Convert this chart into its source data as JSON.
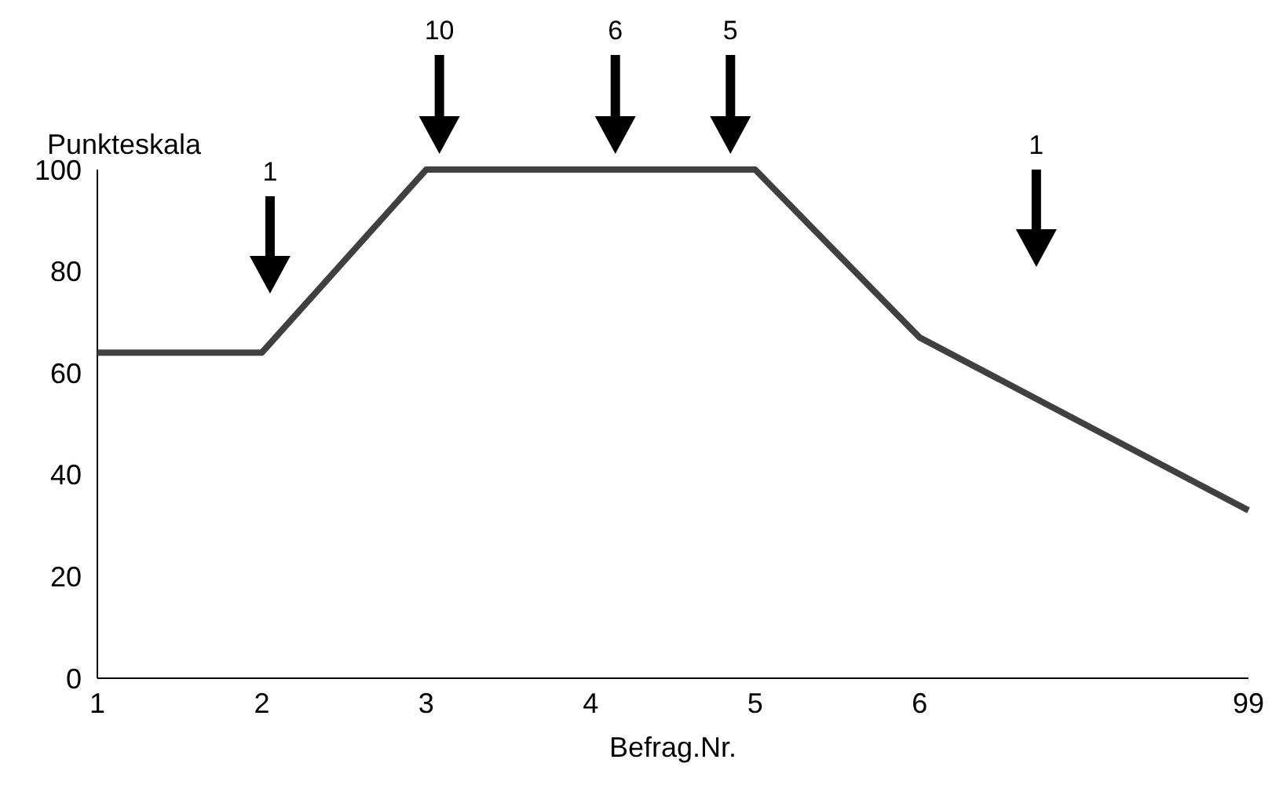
{
  "chart_data": {
    "type": "line",
    "xlabel": "Befrag.Nr.",
    "ylabel": "Punkteskala",
    "categories": [
      "1",
      "2",
      "3",
      "4",
      "5",
      "6",
      null,
      "99"
    ],
    "series": [
      {
        "color": "#404040",
        "values": [
          64,
          64,
          100,
          100,
          100,
          67,
          50,
          33
        ]
      }
    ],
    "ylim": [
      0,
      100
    ],
    "yticks": [
      0,
      20,
      40,
      60,
      80,
      100
    ],
    "grid": false,
    "marker": "none",
    "line_style": "solid",
    "annotations": [
      "1",
      "10",
      "6",
      "5",
      "1"
    ]
  }
}
